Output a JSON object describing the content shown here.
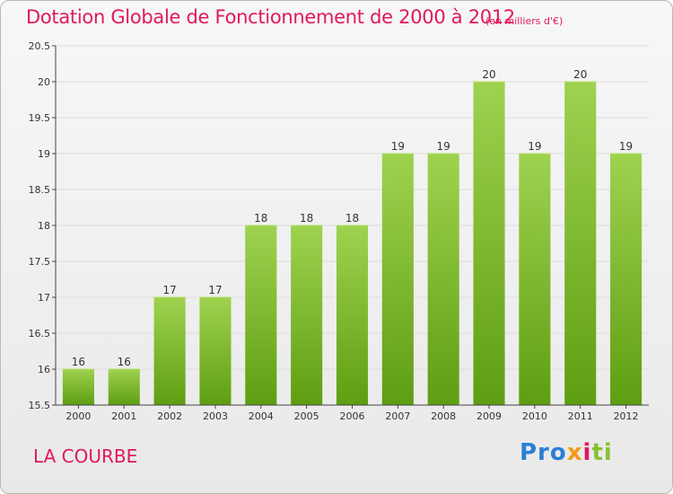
{
  "header": {
    "title": "Dotation Globale de Fonctionnement de 2000 à 2012",
    "subtitle": "(en milliers d'€)"
  },
  "footer": {
    "place": "LA COURBE",
    "logo": [
      "Pro",
      "x",
      "i",
      "ti"
    ]
  },
  "colors": {
    "title": "#e0185f",
    "bar_top": "#9fd24f",
    "bar_bottom": "#5e9e12",
    "axis": "#444444",
    "grid": "#dddddd"
  },
  "chart_data": {
    "type": "bar",
    "title": "Dotation Globale de Fonctionnement de 2000 à 2012",
    "subtitle": "(en milliers d'€)",
    "categories": [
      "2000",
      "2001",
      "2002",
      "2003",
      "2004",
      "2005",
      "2006",
      "2007",
      "2008",
      "2009",
      "2010",
      "2011",
      "2012"
    ],
    "values": [
      16,
      16,
      17,
      17,
      18,
      18,
      18,
      19,
      19,
      20,
      19,
      20,
      19
    ],
    "value_labels": [
      "16",
      "16",
      "17",
      "17",
      "18",
      "18",
      "18",
      "19",
      "19",
      "20",
      "19",
      "20",
      "19"
    ],
    "yticks": [
      15.5,
      16,
      16.5,
      17,
      17.5,
      18,
      18.5,
      19,
      19.5,
      20,
      20.5
    ],
    "ytick_labels": [
      "15.5",
      "16",
      "16.5",
      "17",
      "17.5",
      "18",
      "18.5",
      "19",
      "19.5",
      "20",
      "20.5"
    ],
    "ylim": [
      15.5,
      20.5
    ],
    "xlabel": "",
    "ylabel": "",
    "grid": true,
    "legend": "none"
  }
}
